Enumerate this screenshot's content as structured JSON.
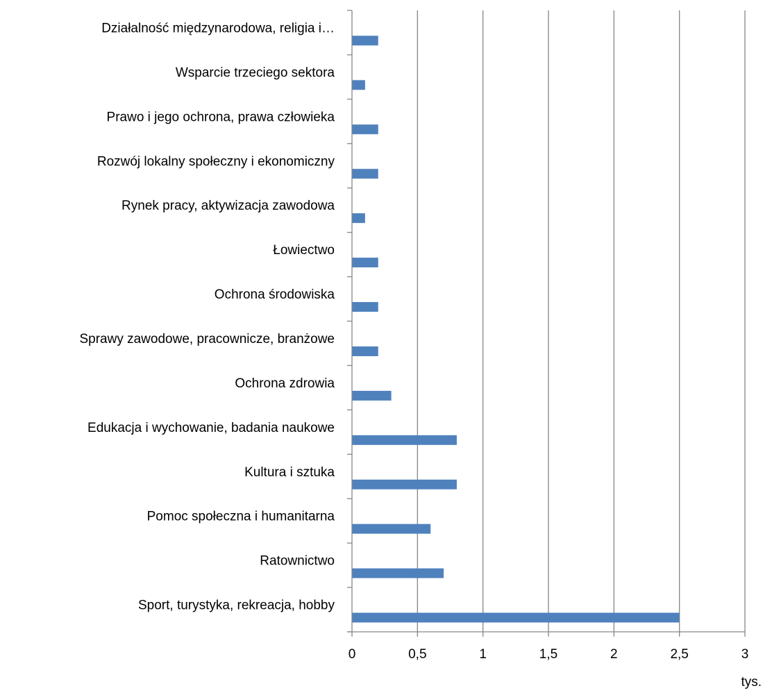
{
  "chart_data": {
    "type": "bar",
    "orientation": "horizontal",
    "categories": [
      "Działalność międzynarodowa, religia i…",
      "Wsparcie trzeciego sektora",
      "Prawo i jego ochrona, prawa człowieka",
      "Rozwój lokalny społeczny i ekonomiczny",
      "Rynek pracy, aktywizacja zawodowa",
      "Łowiectwo",
      "Ochrona środowiska",
      "Sprawy zawodowe, pracownicze, branżowe",
      "Ochrona zdrowia",
      "Edukacja i wychowanie, badania naukowe",
      "Kultura i sztuka",
      "Pomoc społeczna i humanitarna",
      "Ratownictwo",
      "Sport, turystyka, rekreacja, hobby"
    ],
    "values": [
      0.2,
      0.1,
      0.2,
      0.2,
      0.1,
      0.2,
      0.2,
      0.2,
      0.3,
      0.8,
      0.8,
      0.6,
      0.7,
      2.5
    ],
    "xlim": [
      0,
      3
    ],
    "x_ticks": [
      "0",
      "0,5",
      "1",
      "1,5",
      "2",
      "2,5",
      "3"
    ],
    "x_tick_values": [
      0,
      0.5,
      1,
      1.5,
      2,
      2.5,
      3
    ],
    "unit": "tys.",
    "grid": "vertical",
    "bar_color": "#4f81bd",
    "grid_color": "#868686"
  }
}
